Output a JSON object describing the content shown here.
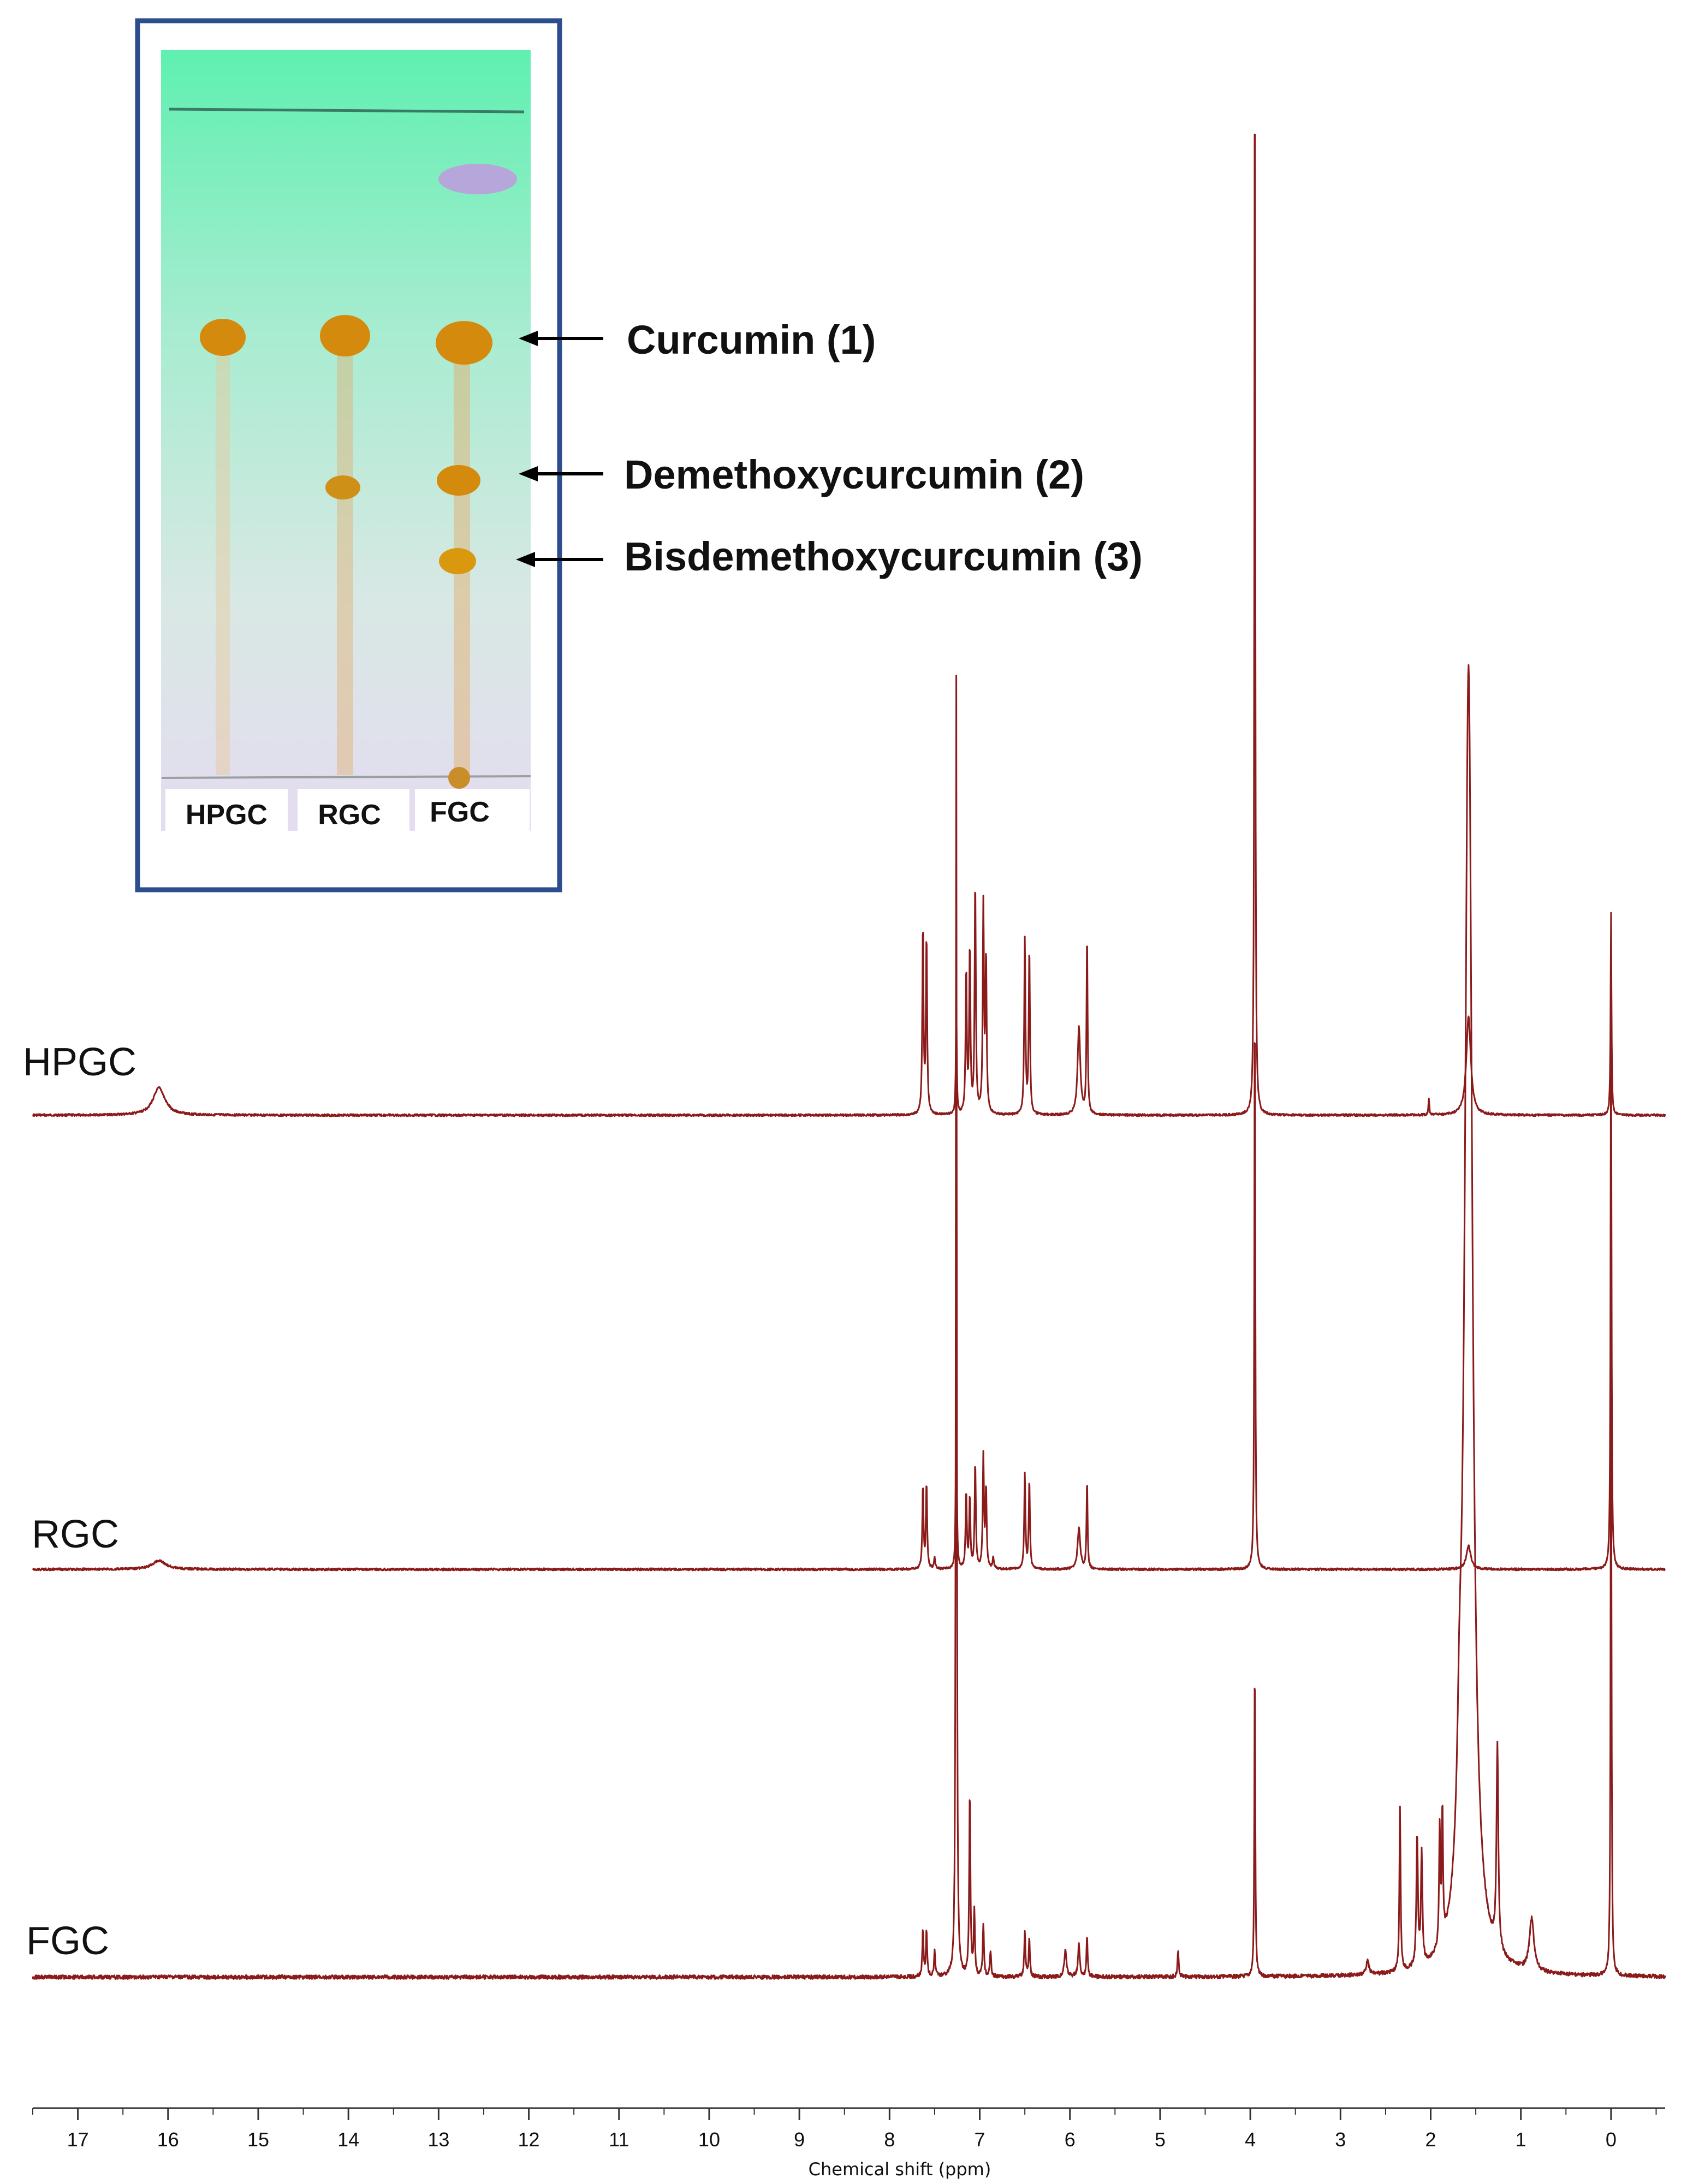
{
  "colors": {
    "spectrum": "#8b1a1a",
    "frame": "#2d4d8c",
    "axis": "#333333",
    "arrow": "#000000",
    "spot": "#d48a0c",
    "solvent_front_spot": "#b7a6d9"
  },
  "tlc": {
    "lanes": [
      "HPGC",
      "RGC",
      "FGC"
    ],
    "annotations": [
      "Curcumin (1)",
      "Demethoxycurcumin (2)",
      "Bisdemethoxycurcumin (3)"
    ]
  },
  "chart_data": {
    "type": "line",
    "xlabel": "Chemical shift (ppm)",
    "ylabel": "",
    "title": "",
    "xlim": [
      17.5,
      -0.6
    ],
    "x_reversed": true,
    "grid": false,
    "xticks": [
      17,
      16,
      15,
      14,
      13,
      12,
      11,
      10,
      9,
      8,
      7,
      6,
      5,
      4,
      3,
      2,
      1,
      0
    ],
    "series": [
      {
        "name": "HPGC",
        "peaks": [
          {
            "ppm": 16.1,
            "h": 0.025,
            "w": 0.08
          },
          {
            "ppm": 7.63,
            "h": 0.17,
            "w": 0.008
          },
          {
            "ppm": 7.59,
            "h": 0.16,
            "w": 0.008
          },
          {
            "ppm": 7.26,
            "h": 0.105,
            "w": 0.006
          },
          {
            "ppm": 7.15,
            "h": 0.13,
            "w": 0.008
          },
          {
            "ppm": 7.11,
            "h": 0.15,
            "w": 0.008
          },
          {
            "ppm": 7.05,
            "h": 0.21,
            "w": 0.008
          },
          {
            "ppm": 6.96,
            "h": 0.19,
            "w": 0.008
          },
          {
            "ppm": 6.93,
            "h": 0.14,
            "w": 0.008
          },
          {
            "ppm": 6.5,
            "h": 0.16,
            "w": 0.008
          },
          {
            "ppm": 6.45,
            "h": 0.15,
            "w": 0.008
          },
          {
            "ppm": 5.9,
            "h": 0.08,
            "w": 0.018
          },
          {
            "ppm": 5.81,
            "h": 0.165,
            "w": 0.007
          },
          {
            "ppm": 3.95,
            "h": 1.0,
            "w": 0.006
          },
          {
            "ppm": 2.02,
            "h": 0.015,
            "w": 0.006
          },
          {
            "ppm": 1.58,
            "h": 0.09,
            "w": 0.03
          },
          {
            "ppm": 0.0,
            "h": 0.185,
            "w": 0.006
          }
        ]
      },
      {
        "name": "RGC",
        "peaks": [
          {
            "ppm": 16.1,
            "h": 0.015,
            "w": 0.09
          },
          {
            "ppm": 7.63,
            "h": 0.14,
            "w": 0.008
          },
          {
            "ppm": 7.59,
            "h": 0.145,
            "w": 0.008
          },
          {
            "ppm": 7.5,
            "h": 0.02,
            "w": 0.008
          },
          {
            "ppm": 7.26,
            "h": 0.37,
            "w": 0.006
          },
          {
            "ppm": 7.15,
            "h": 0.13,
            "w": 0.008
          },
          {
            "ppm": 7.11,
            "h": 0.12,
            "w": 0.008
          },
          {
            "ppm": 7.05,
            "h": 0.18,
            "w": 0.008
          },
          {
            "ppm": 6.96,
            "h": 0.19,
            "w": 0.008
          },
          {
            "ppm": 6.93,
            "h": 0.135,
            "w": 0.008
          },
          {
            "ppm": 6.85,
            "h": 0.02,
            "w": 0.008
          },
          {
            "ppm": 6.5,
            "h": 0.16,
            "w": 0.008
          },
          {
            "ppm": 6.45,
            "h": 0.15,
            "w": 0.008
          },
          {
            "ppm": 5.9,
            "h": 0.07,
            "w": 0.018
          },
          {
            "ppm": 5.81,
            "h": 0.15,
            "w": 0.007
          },
          {
            "ppm": 3.95,
            "h": 1.0,
            "w": 0.006
          },
          {
            "ppm": 1.58,
            "h": 0.04,
            "w": 0.03
          },
          {
            "ppm": 0.0,
            "h": 1.0,
            "w": 0.006
          }
        ]
      },
      {
        "name": "FGC",
        "peaks": [
          {
            "ppm": 7.63,
            "h": 0.035,
            "w": 0.008
          },
          {
            "ppm": 7.59,
            "h": 0.035,
            "w": 0.008
          },
          {
            "ppm": 7.5,
            "h": 0.02,
            "w": 0.008
          },
          {
            "ppm": 7.26,
            "h": 1.0,
            "w": 0.006
          },
          {
            "ppm": 7.11,
            "h": 0.14,
            "w": 0.008
          },
          {
            "ppm": 7.06,
            "h": 0.05,
            "w": 0.008
          },
          {
            "ppm": 6.96,
            "h": 0.04,
            "w": 0.008
          },
          {
            "ppm": 6.88,
            "h": 0.02,
            "w": 0.008
          },
          {
            "ppm": 6.5,
            "h": 0.035,
            "w": 0.008
          },
          {
            "ppm": 6.45,
            "h": 0.03,
            "w": 0.008
          },
          {
            "ppm": 6.05,
            "h": 0.02,
            "w": 0.015
          },
          {
            "ppm": 5.9,
            "h": 0.025,
            "w": 0.012
          },
          {
            "ppm": 5.81,
            "h": 0.03,
            "w": 0.008
          },
          {
            "ppm": 4.8,
            "h": 0.02,
            "w": 0.008
          },
          {
            "ppm": 3.95,
            "h": 0.245,
            "w": 0.006
          },
          {
            "ppm": 2.7,
            "h": 0.01,
            "w": 0.02
          },
          {
            "ppm": 2.34,
            "h": 0.125,
            "w": 0.008
          },
          {
            "ppm": 2.15,
            "h": 0.1,
            "w": 0.01
          },
          {
            "ppm": 2.1,
            "h": 0.085,
            "w": 0.01
          },
          {
            "ppm": 1.9,
            "h": 0.09,
            "w": 0.008
          },
          {
            "ppm": 1.87,
            "h": 0.1,
            "w": 0.008
          },
          {
            "ppm": 1.68,
            "h": 0.08,
            "w": 0.03
          },
          {
            "ppm": 1.58,
            "h": 1.0,
            "w": 0.05
          },
          {
            "ppm": 1.26,
            "h": 0.155,
            "w": 0.012
          },
          {
            "ppm": 0.88,
            "h": 0.04,
            "w": 0.03
          },
          {
            "ppm": 0.0,
            "h": 0.48,
            "w": 0.006
          }
        ]
      }
    ]
  }
}
